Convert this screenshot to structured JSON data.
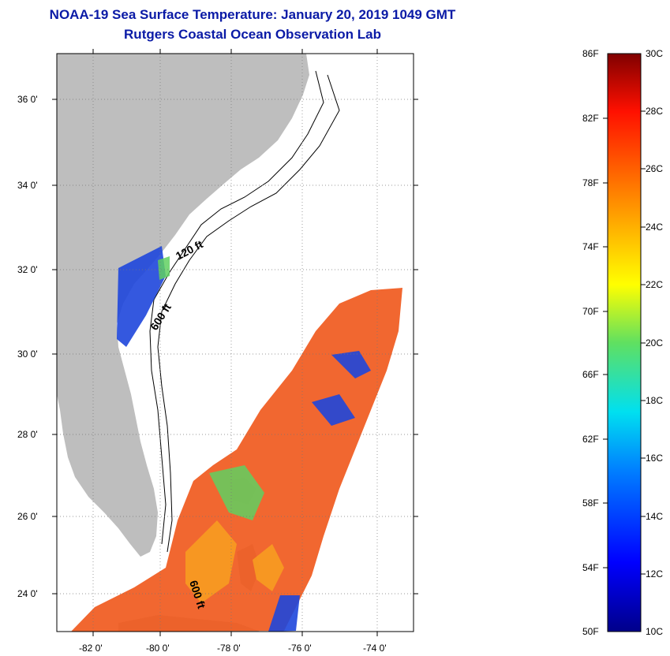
{
  "title": {
    "line1": "NOAA-19 Sea Surface Temperature:  January 20, 2019 1049 GMT",
    "line2": "Rutgers Coastal Ocean Observation Lab"
  },
  "map": {
    "lat_ticks": [
      "36 0'",
      "34 0'",
      "32 0'",
      "30 0'",
      "28 0'",
      "26 0'",
      "24 0'"
    ],
    "lon_ticks": [
      "-82 0'",
      "-80 0'",
      "-78 0'",
      "-76 0'",
      "-74 0'"
    ],
    "contour_labels": [
      "120 ft",
      "600 ft",
      "600 ft"
    ]
  },
  "colorbar": {
    "f_labels": [
      "86F",
      "82F",
      "78F",
      "74F",
      "70F",
      "66F",
      "62F",
      "58F",
      "54F",
      "50F"
    ],
    "c_labels": [
      "30C",
      "28C",
      "26C",
      "24C",
      "22C",
      "20C",
      "18C",
      "16C",
      "14C",
      "12C",
      "10C"
    ]
  },
  "colors": {
    "title": "#0a1aa6",
    "land": "#bebebe",
    "warm": "#f05a1e",
    "cool": "#1e46dc"
  }
}
